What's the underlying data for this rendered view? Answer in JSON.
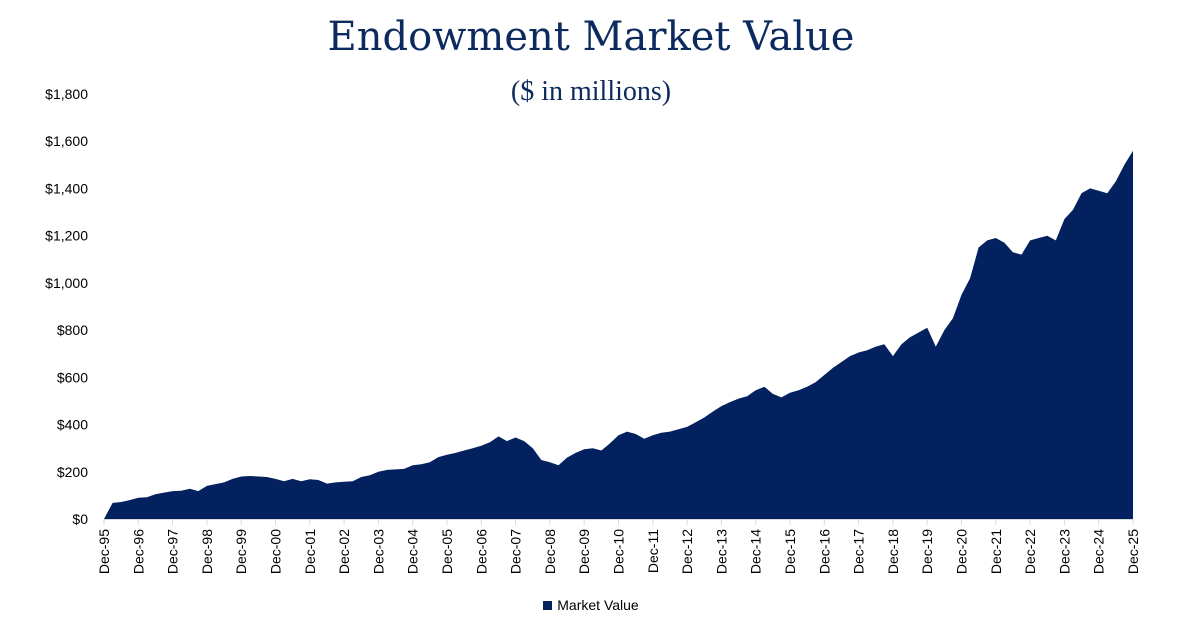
{
  "chart_data": {
    "type": "area",
    "title": "Endowment Market Value",
    "subtitle": "($ in millions)",
    "xlabel": "",
    "ylabel": "",
    "ylim": [
      0,
      1800
    ],
    "yticks": [
      "$0",
      "$200",
      "$400",
      "$600",
      "$800",
      "$1,000",
      "$1,200",
      "$1,400",
      "$1,600",
      "$1,800"
    ],
    "ytick_values": [
      0,
      200,
      400,
      600,
      800,
      1000,
      1200,
      1400,
      1600,
      1800
    ],
    "xticks": [
      "Dec-95",
      "Dec-96",
      "Dec-97",
      "Dec-98",
      "Dec-99",
      "Dec-00",
      "Dec-01",
      "Dec-02",
      "Dec-03",
      "Dec-04",
      "Dec-05",
      "Dec-06",
      "Dec-07",
      "Dec-08",
      "Dec-09",
      "Dec-10",
      "Dec-11",
      "Dec-12",
      "Dec-13",
      "Dec-14",
      "Dec-15",
      "Dec-16",
      "Dec-17",
      "Dec-18",
      "Dec-19",
      "Dec-20",
      "Dec-21",
      "Dec-22",
      "Dec-23",
      "Dec-24",
      "Dec-25"
    ],
    "grid": false,
    "legend_position": "bottom",
    "color": "#02215e",
    "series": [
      {
        "name": "Market Value",
        "x": [
          "1995-12",
          "1996-03",
          "1996-06",
          "1996-09",
          "1996-12",
          "1997-03",
          "1997-06",
          "1997-09",
          "1997-12",
          "1998-03",
          "1998-06",
          "1998-09",
          "1998-12",
          "1999-03",
          "1999-06",
          "1999-09",
          "1999-12",
          "2000-03",
          "2000-06",
          "2000-09",
          "2000-12",
          "2001-03",
          "2001-06",
          "2001-09",
          "2001-12",
          "2002-03",
          "2002-06",
          "2002-09",
          "2002-12",
          "2003-03",
          "2003-06",
          "2003-09",
          "2003-12",
          "2004-03",
          "2004-06",
          "2004-09",
          "2004-12",
          "2005-03",
          "2005-06",
          "2005-09",
          "2005-12",
          "2006-03",
          "2006-06",
          "2006-09",
          "2006-12",
          "2007-03",
          "2007-06",
          "2007-09",
          "2007-12",
          "2008-03",
          "2008-06",
          "2008-09",
          "2008-12",
          "2009-03",
          "2009-06",
          "2009-09",
          "2009-12",
          "2010-03",
          "2010-06",
          "2010-09",
          "2010-12",
          "2011-03",
          "2011-06",
          "2011-09",
          "2011-12",
          "2012-03",
          "2012-06",
          "2012-09",
          "2012-12",
          "2013-03",
          "2013-06",
          "2013-09",
          "2013-12",
          "2014-03",
          "2014-06",
          "2014-09",
          "2014-12",
          "2015-03",
          "2015-06",
          "2015-09",
          "2015-12",
          "2016-03",
          "2016-06",
          "2016-09",
          "2016-12",
          "2017-03",
          "2017-06",
          "2017-09",
          "2017-12",
          "2018-03",
          "2018-06",
          "2018-09",
          "2018-12",
          "2019-03",
          "2019-06",
          "2019-09",
          "2019-12",
          "2020-03",
          "2020-06",
          "2020-09",
          "2020-12",
          "2021-03",
          "2021-06",
          "2021-09",
          "2021-12",
          "2022-03",
          "2022-06",
          "2022-09",
          "2022-12",
          "2023-03",
          "2023-06",
          "2023-09",
          "2023-12",
          "2024-03",
          "2024-06",
          "2024-09",
          "2024-12",
          "2025-03",
          "2025-06",
          "2025-09",
          "2025-12"
        ],
        "values": [
          0,
          68,
          72,
          80,
          90,
          92,
          105,
          112,
          118,
          120,
          128,
          118,
          140,
          148,
          155,
          170,
          180,
          182,
          180,
          178,
          170,
          160,
          170,
          160,
          168,
          165,
          150,
          155,
          158,
          160,
          178,
          185,
          200,
          208,
          210,
          212,
          228,
          232,
          240,
          262,
          272,
          280,
          290,
          300,
          310,
          325,
          350,
          330,
          345,
          330,
          300,
          250,
          240,
          228,
          260,
          280,
          295,
          300,
          290,
          320,
          355,
          370,
          360,
          340,
          355,
          365,
          370,
          380,
          390,
          410,
          430,
          455,
          478,
          495,
          510,
          520,
          545,
          560,
          530,
          515,
          535,
          545,
          560,
          580,
          610,
          640,
          665,
          690,
          705,
          715,
          730,
          740,
          690,
          740,
          770,
          790,
          810,
          730,
          800,
          850,
          950,
          1020,
          1150,
          1180,
          1190,
          1170,
          1130,
          1120,
          1180,
          1190,
          1200,
          1180,
          1270,
          1310,
          1380,
          1400,
          1390,
          1380,
          1430,
          1500,
          1560
        ]
      }
    ]
  }
}
